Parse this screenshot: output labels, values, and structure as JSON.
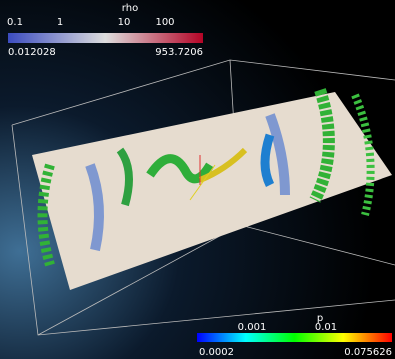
{
  "rho_bar": {
    "title": "rho",
    "ticks": [
      "0.1",
      "1",
      "10",
      "100"
    ],
    "min": "0.012028",
    "max": "953.7206"
  },
  "p_bar": {
    "title": "p",
    "ticks": [
      "0.001",
      "0.01"
    ],
    "min": "0.0002",
    "max": "0.075626"
  }
}
